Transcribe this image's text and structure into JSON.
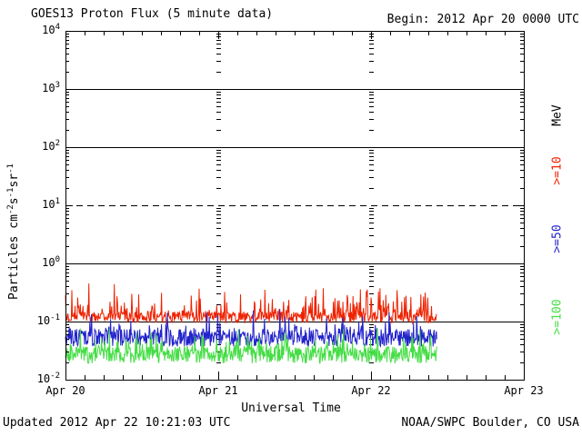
{
  "header": {
    "title": "GOES13 Proton Flux (5 minute data)",
    "begin_label": "Begin: 2012 Apr 20 0000 UTC"
  },
  "footer": {
    "updated": "Updated 2012 Apr 22 10:21:03 UTC",
    "source": "NOAA/SWPC Boulder, CO USA"
  },
  "chart_data": {
    "type": "line",
    "title": "GOES13 Proton Flux (5 minute data)",
    "xlabel": "Universal Time",
    "ylabel_text": "Particles cm-2s-1sr-1",
    "ylabel_parts": [
      {
        "text": "Particles cm"
      },
      {
        "sup": "-2"
      },
      {
        "text": "s"
      },
      {
        "sup": "-1"
      },
      {
        "text": "sr"
      },
      {
        "sup": "-1"
      }
    ],
    "x_tick_labels": [
      "Apr 20",
      "Apr 21",
      "Apr 22",
      "Apr 23"
    ],
    "x_range_days": [
      0,
      3
    ],
    "x_minor_ticks_per_day": 8,
    "y_scale": "log",
    "y_range": [
      0.01,
      10000
    ],
    "y_tick_exponents": [
      4,
      3,
      2,
      1,
      0,
      -1,
      -2
    ],
    "grid": {
      "horizontal_solid_exponents": [
        3,
        2,
        0,
        -1
      ],
      "horizontal_dashed_exponents": [
        1
      ],
      "vertical_dashed_days": [
        1,
        2
      ]
    },
    "legend": {
      "units_label": "MeV",
      "entries": [
        {
          "label": ">=10",
          "color": "#ee2200"
        },
        {
          "label": ">=50",
          "color": "#2222cc"
        },
        {
          "label": ">=100",
          "color": "#44dd44"
        }
      ]
    },
    "cadence_minutes": 5,
    "data_start_day": 0,
    "data_end_day": 2.431,
    "series": [
      {
        "name": ">=10 MeV",
        "color": "#ee2200",
        "approx_median_flux": 0.12,
        "approx_range": [
          0.07,
          0.45
        ],
        "base_log10": -0.93,
        "jitter_log10": 0.2,
        "spike_prob": 0.3,
        "spike_log10": 0.5,
        "min_log10": -1.08,
        "seed": 7
      },
      {
        "name": ">=50 MeV",
        "color": "#2222cc",
        "approx_median_flux": 0.05,
        "approx_range": [
          0.03,
          0.16
        ],
        "base_log10": -1.28,
        "jitter_log10": 0.3,
        "spike_prob": 0.25,
        "spike_log10": 0.38,
        "min_log10": -1.52,
        "seed": 13
      },
      {
        "name": ">=100 MeV",
        "color": "#44dd44",
        "approx_median_flux": 0.027,
        "approx_range": [
          0.018,
          0.08
        ],
        "base_log10": -1.57,
        "jitter_log10": 0.3,
        "spike_prob": 0.25,
        "spike_log10": 0.38,
        "min_log10": -1.76,
        "seed": 21
      }
    ]
  }
}
